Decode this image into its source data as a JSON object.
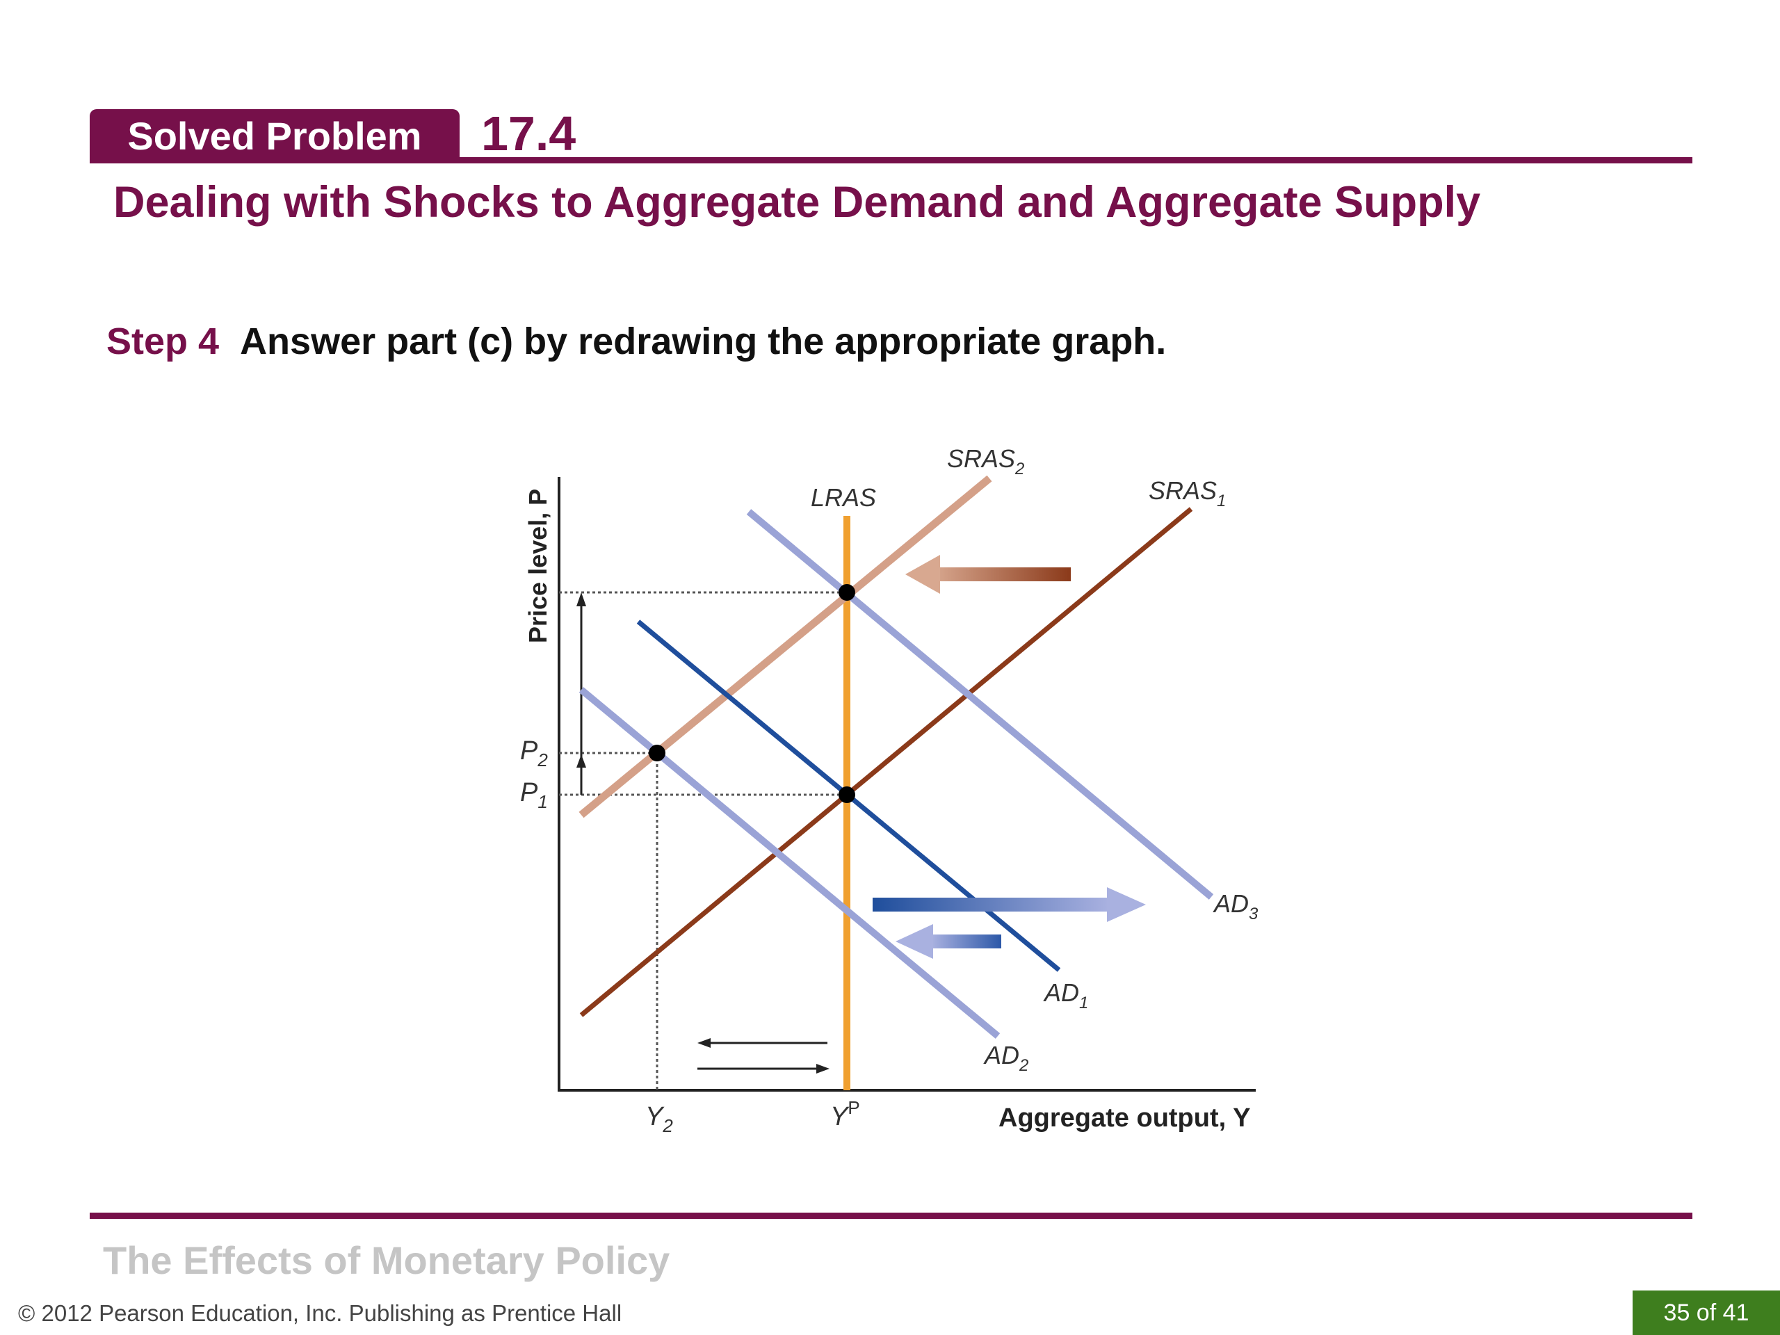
{
  "header": {
    "badge": "Solved Problem",
    "number": "17.4",
    "title": "Dealing with Shocks to Aggregate Demand and Aggregate Supply"
  },
  "step": {
    "label": "Step 4",
    "text": "Answer part (c) by redrawing the appropriate graph."
  },
  "diagram": {
    "y_axis_label": "Price level, P",
    "x_axis_label": "Aggregate output, Y",
    "curves": {
      "lras": "LRAS",
      "sras1": {
        "base": "SRAS",
        "sub": "1"
      },
      "sras2": {
        "base": "SRAS",
        "sub": "2"
      },
      "ad1": {
        "base": "AD",
        "sub": "1"
      },
      "ad2": {
        "base": "AD",
        "sub": "2"
      },
      "ad3": {
        "base": "AD",
        "sub": "3"
      }
    },
    "ticks": {
      "p1": {
        "base": "P",
        "sub": "1"
      },
      "p2": {
        "base": "P",
        "sub": "2"
      },
      "y2": {
        "base": "Y",
        "sub": "2"
      },
      "yp": {
        "base": "Y",
        "sup": "P"
      }
    },
    "colors": {
      "lras": "#f0a030",
      "sras1": "#8b3a1a",
      "sras2": "#d4a088",
      "ad1": "#1f4e9c",
      "ad2": "#9aa3d6",
      "ad3": "#9aa3d6"
    }
  },
  "footer": {
    "title": "The Effects of Monetary Policy",
    "copyright": "© 2012 Pearson Education, Inc. Publishing as Prentice Hall",
    "page": "35 of 41"
  }
}
